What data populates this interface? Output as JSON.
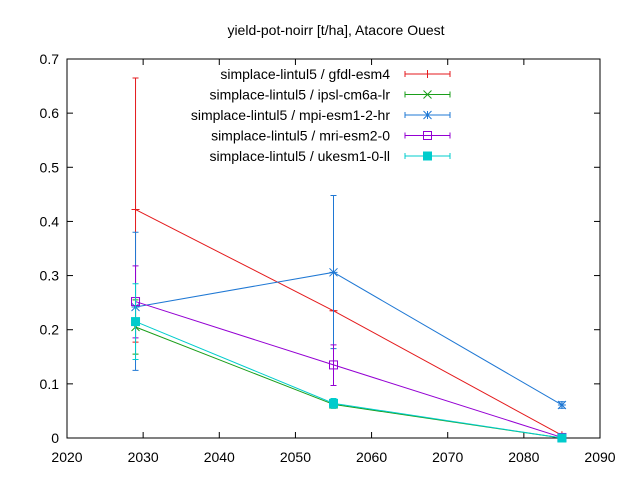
{
  "chart_data": {
    "type": "line",
    "title": "yield-pot-noirr [t/ha], Atacore Ouest",
    "xlabel": "",
    "ylabel": "",
    "xlim": [
      2020,
      2090
    ],
    "ylim": [
      0,
      0.7
    ],
    "x_ticks": [
      "2020",
      "2030",
      "2040",
      "2050",
      "2060",
      "2070",
      "2080",
      "2090"
    ],
    "y_ticks": [
      "0",
      "0.1",
      "0.2",
      "0.3",
      "0.4",
      "0.5",
      "0.6",
      "0.7"
    ],
    "grid": false,
    "legend_position": "top-right",
    "series": [
      {
        "name": "simplace-lintul5 / gfdl-esm4",
        "color": "#e41a1c",
        "marker": "plus",
        "points": [
          {
            "x": 2029,
            "y": 0.422,
            "err_low": 0.177,
            "err_high": 0.665
          },
          {
            "x": 2055,
            "y": 0.235,
            "err_low": 0.235,
            "err_high": 0.235
          },
          {
            "x": 2085,
            "y": 0.005,
            "err_low": 0.003,
            "err_high": 0.007
          }
        ]
      },
      {
        "name": "simplace-lintul5 / ipsl-cm6a-lr",
        "color": "#1a9e1a",
        "marker": "cross",
        "points": [
          {
            "x": 2029,
            "y": 0.205,
            "err_low": 0.155,
            "err_high": 0.255
          },
          {
            "x": 2055,
            "y": 0.062,
            "err_low": 0.055,
            "err_high": 0.07
          },
          {
            "x": 2085,
            "y": 0.0,
            "err_low": 0.0,
            "err_high": 0.002
          }
        ]
      },
      {
        "name": "simplace-lintul5 / mpi-esm1-2-hr",
        "color": "#1f78d4",
        "marker": "star",
        "points": [
          {
            "x": 2029,
            "y": 0.242,
            "err_low": 0.125,
            "err_high": 0.38
          },
          {
            "x": 2055,
            "y": 0.306,
            "err_low": 0.165,
            "err_high": 0.448
          },
          {
            "x": 2085,
            "y": 0.061,
            "err_low": 0.055,
            "err_high": 0.067
          }
        ]
      },
      {
        "name": "simplace-lintul5 / mri-esm2-0",
        "color": "#9400d3",
        "marker": "square",
        "points": [
          {
            "x": 2029,
            "y": 0.252,
            "err_low": 0.185,
            "err_high": 0.318
          },
          {
            "x": 2055,
            "y": 0.135,
            "err_low": 0.097,
            "err_high": 0.172
          },
          {
            "x": 2085,
            "y": 0.001,
            "err_low": 0.0,
            "err_high": 0.002
          }
        ]
      },
      {
        "name": "simplace-lintul5 / ukesm1-0-ll",
        "color": "#00cccc",
        "marker": "filled-square",
        "points": [
          {
            "x": 2029,
            "y": 0.215,
            "err_low": 0.145,
            "err_high": 0.285
          },
          {
            "x": 2055,
            "y": 0.064,
            "err_low": 0.055,
            "err_high": 0.073
          },
          {
            "x": 2085,
            "y": 0.0,
            "err_low": 0.0,
            "err_high": 0.002
          }
        ]
      }
    ]
  }
}
